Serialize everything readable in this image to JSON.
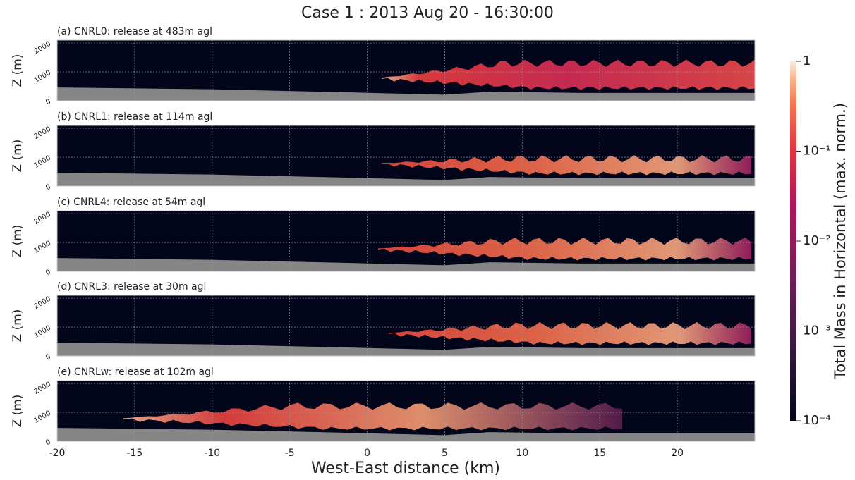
{
  "chart_data": {
    "type": "heatmap",
    "title": "Case 1 : 2013 Aug 20 - 16:30:00",
    "xlabel": "West-East distance (km)",
    "xlim": [
      -20,
      25
    ],
    "xticks": [
      -20,
      -15,
      -10,
      -5,
      0,
      5,
      10,
      15,
      20
    ],
    "panels": [
      {
        "title": "(a) CNRL0: release at 483m agl",
        "ylabel": "Z (m)",
        "ylim": [
          0,
          2100
        ],
        "yticks": [
          0,
          1000,
          2000
        ]
      },
      {
        "title": "(b) CNRL1: release at 114m agl",
        "ylabel": "Z (m)",
        "ylim": [
          0,
          2100
        ],
        "yticks": [
          0,
          1000,
          2000
        ]
      },
      {
        "title": "(c) CNRL4: release at 54m agl",
        "ylabel": "Z (m)",
        "ylim": [
          0,
          2100
        ],
        "yticks": [
          0,
          1000,
          2000
        ]
      },
      {
        "title": "(d) CNRL3: release at 30m agl",
        "ylabel": "Z (m)",
        "ylim": [
          0,
          2100
        ],
        "yticks": [
          0,
          1000,
          2000
        ]
      },
      {
        "title": "(e) CNRLw: release at 102m agl",
        "ylabel": "Z (m)",
        "ylim": [
          0,
          2100
        ],
        "yticks": [
          0,
          1000,
          2000
        ]
      }
    ],
    "colorbar": {
      "label": "Total Mass in Horizontal (max. norm.)",
      "scale": "log",
      "lim": [
        0.0001,
        1
      ],
      "ticks": [
        {
          "value": 1,
          "label": "1"
        },
        {
          "value": 0.1,
          "label": "10⁻¹"
        },
        {
          "value": 0.01,
          "label": "10⁻²"
        },
        {
          "value": 0.001,
          "label": "10⁻³"
        },
        {
          "value": 0.0001,
          "label": "10⁻⁴"
        }
      ]
    }
  }
}
